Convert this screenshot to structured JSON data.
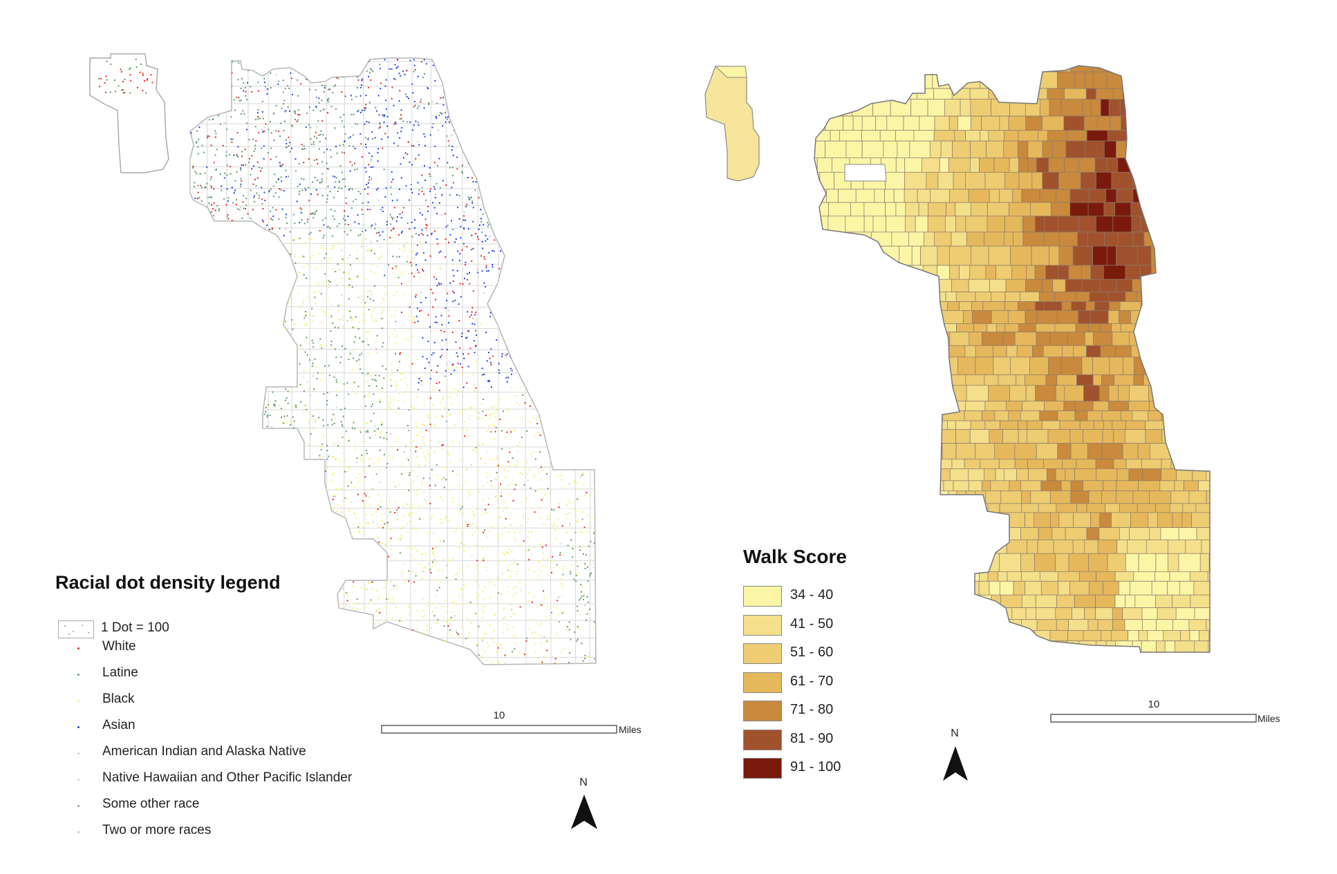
{
  "dot_map": {
    "legend_title": "Racial dot density legend",
    "dot_unit": "1 Dot = 100",
    "categories": [
      {
        "label": "White",
        "color": "#e8231f"
      },
      {
        "label": "Latine",
        "color": "#5d9a6e"
      },
      {
        "label": "Black",
        "color": "#f4f07a"
      },
      {
        "label": "Asian",
        "color": "#1f3fe0"
      },
      {
        "label": "American Indian and Alaska Native",
        "color": "#c9c9c9"
      },
      {
        "label": "Native Hawaiian and Other Pacific Islander",
        "color": "#bfe0bf"
      },
      {
        "label": "Some other race",
        "color": "#7aa0b8"
      },
      {
        "label": "Two or more races",
        "color": "#d8b0c8"
      }
    ],
    "scale": {
      "label": "10",
      "unit": "Miles"
    },
    "north": "N"
  },
  "walk_map": {
    "legend_title": "Walk Score",
    "classes": [
      {
        "label": "34 - 40",
        "color": "#fbf5a6"
      },
      {
        "label": "41 - 50",
        "color": "#f4e08a"
      },
      {
        "label": "51 - 60",
        "color": "#edcc72"
      },
      {
        "label": "61 - 70",
        "color": "#e6b85c"
      },
      {
        "label": "71 - 80",
        "color": "#c98a3d"
      },
      {
        "label": "81 - 90",
        "color": "#a0522d"
      },
      {
        "label": "91 - 100",
        "color": "#7a1a0d"
      }
    ],
    "scale": {
      "label": "10",
      "unit": "Miles"
    },
    "north": "N"
  }
}
